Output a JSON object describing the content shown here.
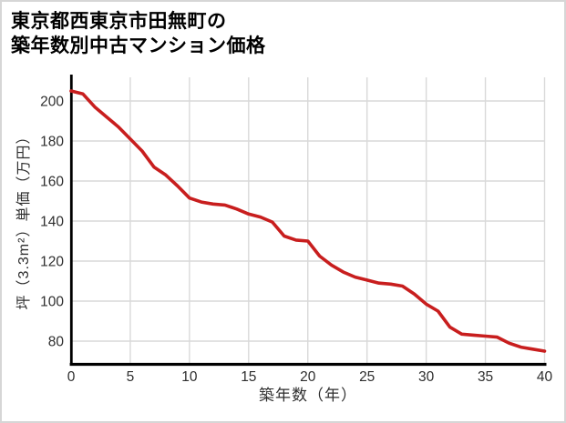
{
  "title": {
    "line1": "東京都西東京市田無町の",
    "line2": "築年数別中古マンション価格"
  },
  "chart_data": {
    "type": "line",
    "title": "東京都西東京市田無町の築年数別中古マンション価格",
    "xlabel": "築年数（年）",
    "ylabel": "坪（3.3m²）単価（万円）",
    "x": [
      0,
      1,
      2,
      3,
      4,
      5,
      6,
      7,
      8,
      9,
      10,
      11,
      12,
      13,
      14,
      15,
      16,
      17,
      18,
      19,
      20,
      21,
      22,
      23,
      24,
      25,
      26,
      27,
      28,
      29,
      30,
      31,
      32,
      33,
      34,
      35,
      36,
      37,
      38,
      39,
      40
    ],
    "values": [
      205,
      203.5,
      197,
      192,
      187,
      181,
      175,
      167,
      163,
      157.5,
      151.5,
      149.5,
      148.5,
      148,
      146,
      143.5,
      142,
      139.5,
      132.5,
      130.5,
      130,
      122.5,
      118,
      114.5,
      112,
      110.5,
      109,
      108.5,
      107.5,
      103.5,
      98.5,
      95,
      87,
      83.5,
      83,
      82.5,
      82,
      79,
      77,
      76,
      75
    ],
    "x_ticks": [
      0,
      5,
      10,
      15,
      20,
      25,
      30,
      35,
      40
    ],
    "y_ticks": [
      200,
      180,
      160,
      140,
      120,
      100,
      80
    ],
    "xlim": [
      0,
      40
    ],
    "grid": true,
    "legend": "none",
    "line_color": "#c81e1e",
    "grid_color": "#d9d9d9",
    "axis_color": "#000000",
    "tick_label_color": "#2e2e2e"
  }
}
